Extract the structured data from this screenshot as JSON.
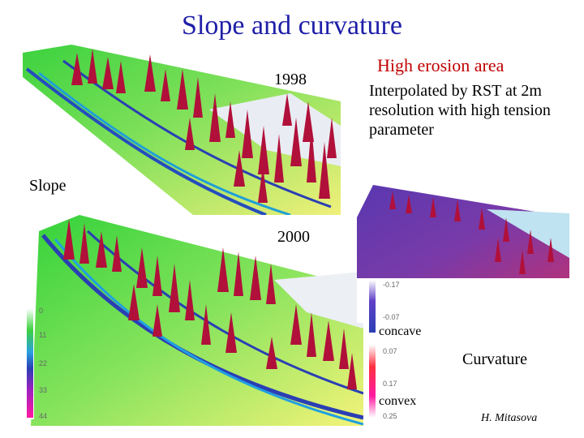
{
  "slide": {
    "title": "Slope and curvature",
    "label_1998": "1998",
    "label_2000": "2000",
    "slope_label": "Slope",
    "curvature_label": "Curvature",
    "note_title": "High erosion area",
    "note_body": "Interpolated by RST at 2m resolution with high tension parameter",
    "concave_label": "concave",
    "convex_label": "convex",
    "credit": "H. Mitasova",
    "slope_legend_ticks": [
      "0",
      "11",
      "22",
      "33",
      "44"
    ],
    "curvature_legend_ticks": [
      "-0.17",
      "-0.07",
      "0.07",
      "0.17",
      "0.25"
    ]
  },
  "colors": {
    "title": "#1f1fa8",
    "note_title": "#c00000",
    "peak": "#b0103a",
    "terrain_green": "#2fd33a",
    "terrain_yellow": "#f3f37a",
    "curv_purple": "#4a2a9a"
  }
}
